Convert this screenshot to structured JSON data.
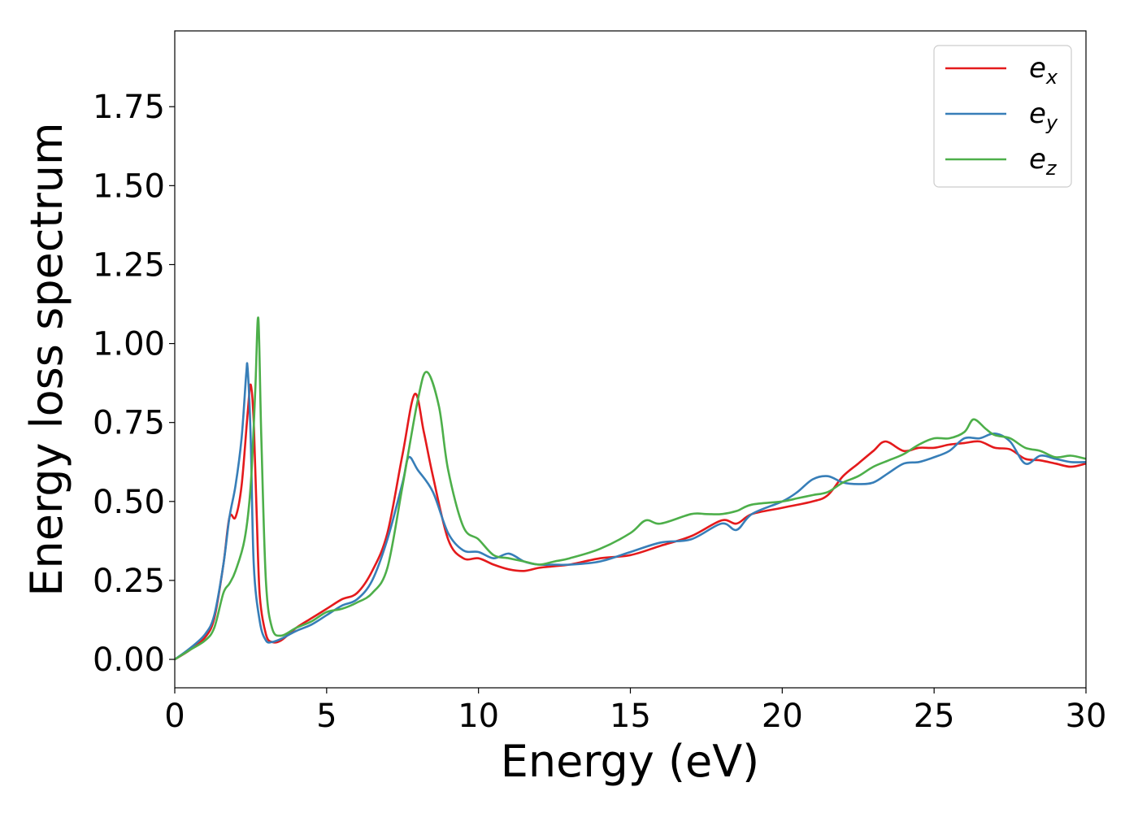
{
  "chart_data": {
    "type": "line",
    "xlabel": "Energy (eV)",
    "ylabel": "Energy loss spectrum",
    "xlim": [
      0,
      30
    ],
    "ylim": [
      -0.09,
      1.99
    ],
    "xticks": [
      0,
      5,
      10,
      15,
      20,
      25,
      30
    ],
    "xtick_labels": [
      "0",
      "5",
      "10",
      "15",
      "20",
      "25",
      "30"
    ],
    "yticks": [
      0.0,
      0.25,
      0.5,
      0.75,
      1.0,
      1.25,
      1.5,
      1.75
    ],
    "ytick_labels": [
      "0.00",
      "0.25",
      "0.50",
      "0.75",
      "1.00",
      "1.25",
      "1.50",
      "1.75"
    ],
    "grid": false,
    "legend_position": "top-right",
    "series": [
      {
        "name": "e_x",
        "label_base": "e",
        "label_sub": "x",
        "color": "#e41a1c",
        "points": [
          [
            0,
            0
          ],
          [
            0.5,
            0.03
          ],
          [
            1.0,
            0.07
          ],
          [
            1.3,
            0.13
          ],
          [
            1.6,
            0.3
          ],
          [
            1.8,
            0.45
          ],
          [
            2.0,
            0.45
          ],
          [
            2.2,
            0.55
          ],
          [
            2.4,
            0.78
          ],
          [
            2.5,
            0.87
          ],
          [
            2.6,
            0.75
          ],
          [
            2.7,
            0.45
          ],
          [
            2.8,
            0.2
          ],
          [
            3.0,
            0.08
          ],
          [
            3.2,
            0.055
          ],
          [
            3.5,
            0.06
          ],
          [
            4.0,
            0.1
          ],
          [
            4.5,
            0.13
          ],
          [
            5.0,
            0.16
          ],
          [
            5.5,
            0.19
          ],
          [
            6.0,
            0.21
          ],
          [
            6.5,
            0.28
          ],
          [
            7.0,
            0.4
          ],
          [
            7.5,
            0.65
          ],
          [
            7.9,
            0.84
          ],
          [
            8.2,
            0.72
          ],
          [
            8.5,
            0.58
          ],
          [
            9.0,
            0.38
          ],
          [
            9.5,
            0.32
          ],
          [
            10.0,
            0.32
          ],
          [
            10.5,
            0.3
          ],
          [
            11.0,
            0.285
          ],
          [
            11.5,
            0.28
          ],
          [
            12.0,
            0.29
          ],
          [
            12.5,
            0.295
          ],
          [
            13.0,
            0.3
          ],
          [
            14.0,
            0.32
          ],
          [
            15.0,
            0.33
          ],
          [
            16.0,
            0.36
          ],
          [
            17.0,
            0.39
          ],
          [
            18.0,
            0.44
          ],
          [
            18.5,
            0.43
          ],
          [
            19.0,
            0.46
          ],
          [
            20.0,
            0.48
          ],
          [
            21.0,
            0.5
          ],
          [
            21.5,
            0.52
          ],
          [
            22.0,
            0.58
          ],
          [
            22.5,
            0.62
          ],
          [
            23.0,
            0.66
          ],
          [
            23.4,
            0.69
          ],
          [
            24.0,
            0.66
          ],
          [
            24.5,
            0.67
          ],
          [
            25.0,
            0.67
          ],
          [
            25.5,
            0.68
          ],
          [
            26.0,
            0.685
          ],
          [
            26.5,
            0.69
          ],
          [
            27.0,
            0.67
          ],
          [
            27.5,
            0.665
          ],
          [
            28.0,
            0.635
          ],
          [
            28.5,
            0.63
          ],
          [
            29.0,
            0.62
          ],
          [
            29.5,
            0.61
          ],
          [
            30.0,
            0.62
          ]
        ]
      },
      {
        "name": "e_y",
        "label_base": "e",
        "label_sub": "y",
        "color": "#377eb8",
        "points": [
          [
            0,
            0
          ],
          [
            0.5,
            0.035
          ],
          [
            1.0,
            0.08
          ],
          [
            1.3,
            0.14
          ],
          [
            1.6,
            0.3
          ],
          [
            1.8,
            0.45
          ],
          [
            2.0,
            0.55
          ],
          [
            2.2,
            0.7
          ],
          [
            2.35,
            0.9
          ],
          [
            2.4,
            0.92
          ],
          [
            2.5,
            0.7
          ],
          [
            2.6,
            0.3
          ],
          [
            2.8,
            0.12
          ],
          [
            3.0,
            0.06
          ],
          [
            3.2,
            0.055
          ],
          [
            3.5,
            0.065
          ],
          [
            4.0,
            0.09
          ],
          [
            4.5,
            0.11
          ],
          [
            5.0,
            0.14
          ],
          [
            5.5,
            0.17
          ],
          [
            6.0,
            0.19
          ],
          [
            6.5,
            0.25
          ],
          [
            7.0,
            0.38
          ],
          [
            7.5,
            0.56
          ],
          [
            7.7,
            0.64
          ],
          [
            8.0,
            0.6
          ],
          [
            8.5,
            0.53
          ],
          [
            9.0,
            0.4
          ],
          [
            9.5,
            0.345
          ],
          [
            10.0,
            0.34
          ],
          [
            10.5,
            0.32
          ],
          [
            11.0,
            0.335
          ],
          [
            11.5,
            0.31
          ],
          [
            12.0,
            0.3
          ],
          [
            12.5,
            0.3
          ],
          [
            13.0,
            0.3
          ],
          [
            14.0,
            0.31
          ],
          [
            15.0,
            0.34
          ],
          [
            16.0,
            0.37
          ],
          [
            17.0,
            0.38
          ],
          [
            18.0,
            0.43
          ],
          [
            18.5,
            0.41
          ],
          [
            19.0,
            0.46
          ],
          [
            20.0,
            0.5
          ],
          [
            20.5,
            0.53
          ],
          [
            21.0,
            0.57
          ],
          [
            21.5,
            0.58
          ],
          [
            22.0,
            0.56
          ],
          [
            22.5,
            0.555
          ],
          [
            23.0,
            0.56
          ],
          [
            23.5,
            0.59
          ],
          [
            24.0,
            0.62
          ],
          [
            24.5,
            0.625
          ],
          [
            25.0,
            0.64
          ],
          [
            25.5,
            0.66
          ],
          [
            26.0,
            0.7
          ],
          [
            26.5,
            0.7
          ],
          [
            27.0,
            0.715
          ],
          [
            27.5,
            0.69
          ],
          [
            28.0,
            0.62
          ],
          [
            28.5,
            0.645
          ],
          [
            29.0,
            0.635
          ],
          [
            29.5,
            0.625
          ],
          [
            30.0,
            0.625
          ]
        ]
      },
      {
        "name": "e_z",
        "label_base": "e",
        "label_sub": "z",
        "color": "#4daf4a",
        "points": [
          [
            0,
            0
          ],
          [
            0.5,
            0.03
          ],
          [
            1.0,
            0.06
          ],
          [
            1.3,
            0.1
          ],
          [
            1.6,
            0.21
          ],
          [
            1.8,
            0.24
          ],
          [
            2.0,
            0.28
          ],
          [
            2.3,
            0.38
          ],
          [
            2.5,
            0.55
          ],
          [
            2.65,
            0.85
          ],
          [
            2.75,
            1.08
          ],
          [
            2.85,
            0.7
          ],
          [
            3.0,
            0.25
          ],
          [
            3.2,
            0.1
          ],
          [
            3.5,
            0.075
          ],
          [
            4.0,
            0.1
          ],
          [
            4.5,
            0.12
          ],
          [
            5.0,
            0.15
          ],
          [
            5.5,
            0.16
          ],
          [
            6.0,
            0.18
          ],
          [
            6.5,
            0.21
          ],
          [
            7.0,
            0.29
          ],
          [
            7.5,
            0.55
          ],
          [
            8.0,
            0.82
          ],
          [
            8.3,
            0.91
          ],
          [
            8.7,
            0.8
          ],
          [
            9.0,
            0.6
          ],
          [
            9.5,
            0.42
          ],
          [
            10.0,
            0.38
          ],
          [
            10.5,
            0.33
          ],
          [
            11.0,
            0.32
          ],
          [
            11.5,
            0.31
          ],
          [
            12.0,
            0.3
          ],
          [
            12.5,
            0.31
          ],
          [
            13.0,
            0.32
          ],
          [
            14.0,
            0.35
          ],
          [
            15.0,
            0.4
          ],
          [
            15.5,
            0.44
          ],
          [
            16.0,
            0.43
          ],
          [
            17.0,
            0.46
          ],
          [
            17.5,
            0.46
          ],
          [
            18.0,
            0.46
          ],
          [
            18.5,
            0.47
          ],
          [
            19.0,
            0.49
          ],
          [
            20.0,
            0.5
          ],
          [
            20.5,
            0.51
          ],
          [
            21.0,
            0.52
          ],
          [
            21.5,
            0.53
          ],
          [
            22.0,
            0.56
          ],
          [
            22.5,
            0.58
          ],
          [
            23.0,
            0.61
          ],
          [
            23.5,
            0.63
          ],
          [
            24.0,
            0.65
          ],
          [
            24.5,
            0.68
          ],
          [
            25.0,
            0.7
          ],
          [
            25.5,
            0.7
          ],
          [
            26.0,
            0.72
          ],
          [
            26.3,
            0.76
          ],
          [
            26.7,
            0.73
          ],
          [
            27.0,
            0.71
          ],
          [
            27.5,
            0.7
          ],
          [
            28.0,
            0.67
          ],
          [
            28.5,
            0.66
          ],
          [
            29.0,
            0.64
          ],
          [
            29.5,
            0.645
          ],
          [
            30.0,
            0.635
          ]
        ]
      }
    ]
  }
}
